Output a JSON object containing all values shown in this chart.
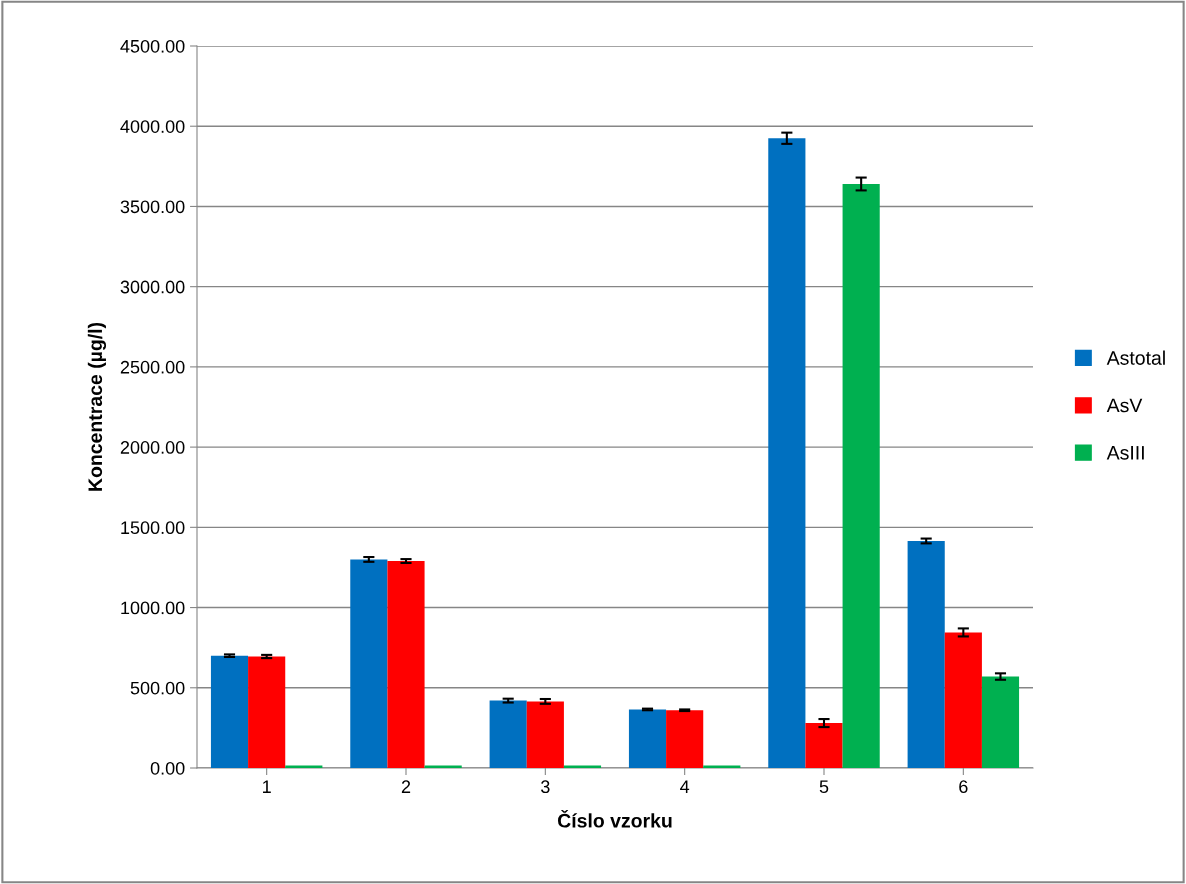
{
  "chart_data": {
    "type": "bar",
    "xlabel": "Číslo vzorku",
    "ylabel": "Koncentrace (µg/l)",
    "categories": [
      "1",
      "2",
      "3",
      "4",
      "5",
      "6"
    ],
    "series": [
      {
        "name": "Astotal",
        "color": "#0070c0",
        "values": [
          700,
          1300,
          420,
          365,
          3925,
          1415
        ],
        "errors": [
          8,
          15,
          12,
          5,
          35,
          15
        ]
      },
      {
        "name": "AsV",
        "color": "#ff0000",
        "values": [
          695,
          1290,
          415,
          360,
          280,
          845
        ],
        "errors": [
          10,
          12,
          15,
          5,
          25,
          25
        ]
      },
      {
        "name": "AsIII",
        "color": "#00b050",
        "values": [
          15,
          15,
          15,
          15,
          3640,
          570
        ],
        "errors": [
          null,
          null,
          null,
          null,
          40,
          20
        ]
      }
    ],
    "ylim": [
      0,
      4500
    ],
    "yticks": [
      {
        "value": 0,
        "label": "0.00"
      },
      {
        "value": 500,
        "label": "500.00"
      },
      {
        "value": 1000,
        "label": "1000.00"
      },
      {
        "value": 1500,
        "label": "1500.00"
      },
      {
        "value": 2000,
        "label": "2000.00"
      },
      {
        "value": 2500,
        "label": "2500.00"
      },
      {
        "value": 3000,
        "label": "3000.00"
      },
      {
        "value": 3500,
        "label": "3500.00"
      },
      {
        "value": 4000,
        "label": "4000.00"
      },
      {
        "value": 4500,
        "label": "4500.00"
      }
    ],
    "grid": "y",
    "legend": "right"
  }
}
